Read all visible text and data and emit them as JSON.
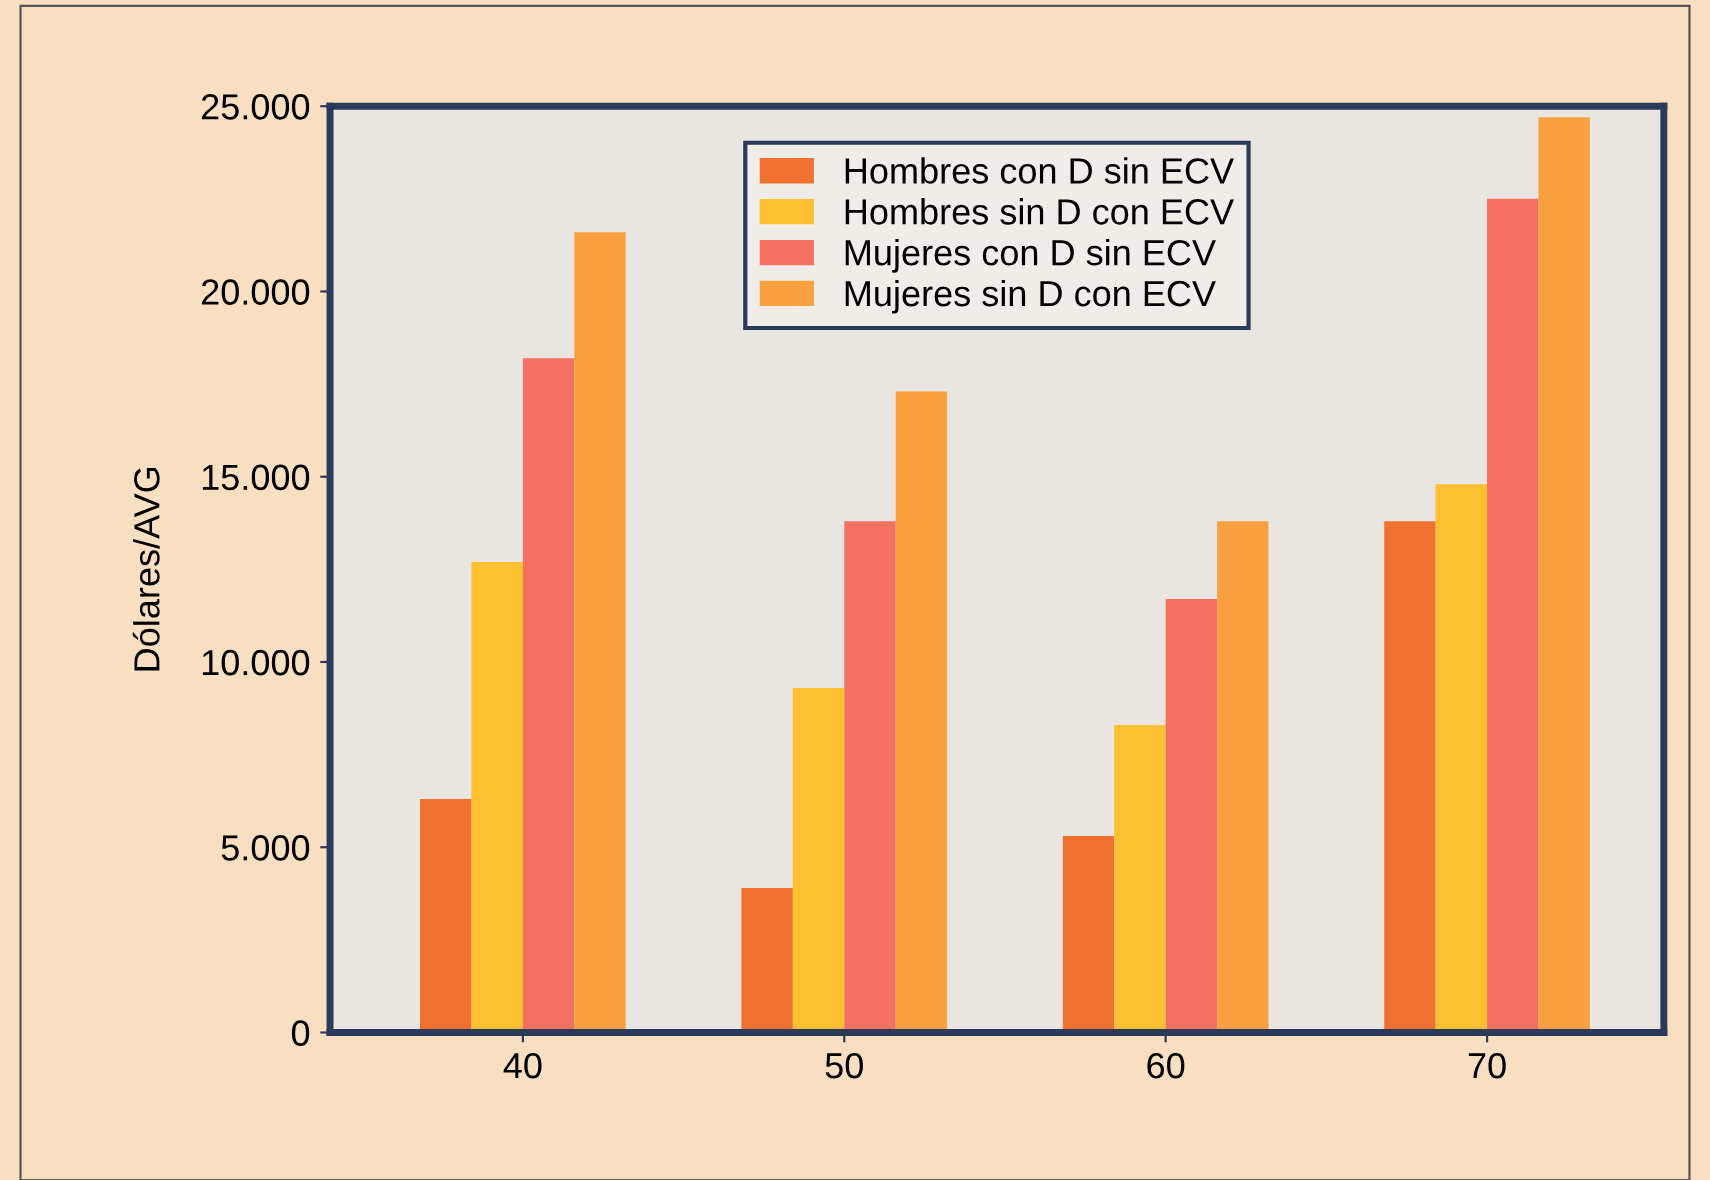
{
  "chart_data": {
    "type": "bar",
    "ylabel": "Dólares/AVG",
    "categories": [
      "40",
      "50",
      "60",
      "70"
    ],
    "series": [
      {
        "name": "Hombres con D sin ECV",
        "color": "#f07030",
        "values": [
          6300,
          3900,
          5300,
          13800
        ]
      },
      {
        "name": "Hombres sin D con ECV",
        "color": "#fdc030",
        "values": [
          12700,
          9300,
          8300,
          14800
        ]
      },
      {
        "name": "Mujeres con D sin ECV",
        "color": "#f47060",
        "values": [
          18200,
          13800,
          11700,
          22500
        ]
      },
      {
        "name": "Mujeres sin D con ECV",
        "color": "#f9a040",
        "values": [
          21600,
          17300,
          13800,
          24700
        ]
      }
    ],
    "ylim": [
      0,
      25000
    ],
    "yticks": [
      {
        "value": 0,
        "label": "0"
      },
      {
        "value": 5000,
        "label": "5.000"
      },
      {
        "value": 10000,
        "label": "10.000"
      },
      {
        "value": 15000,
        "label": "15.000"
      },
      {
        "value": 20000,
        "label": "20.000"
      },
      {
        "value": 25000,
        "label": "25.000"
      }
    ],
    "grid": false,
    "legend": "top center"
  }
}
